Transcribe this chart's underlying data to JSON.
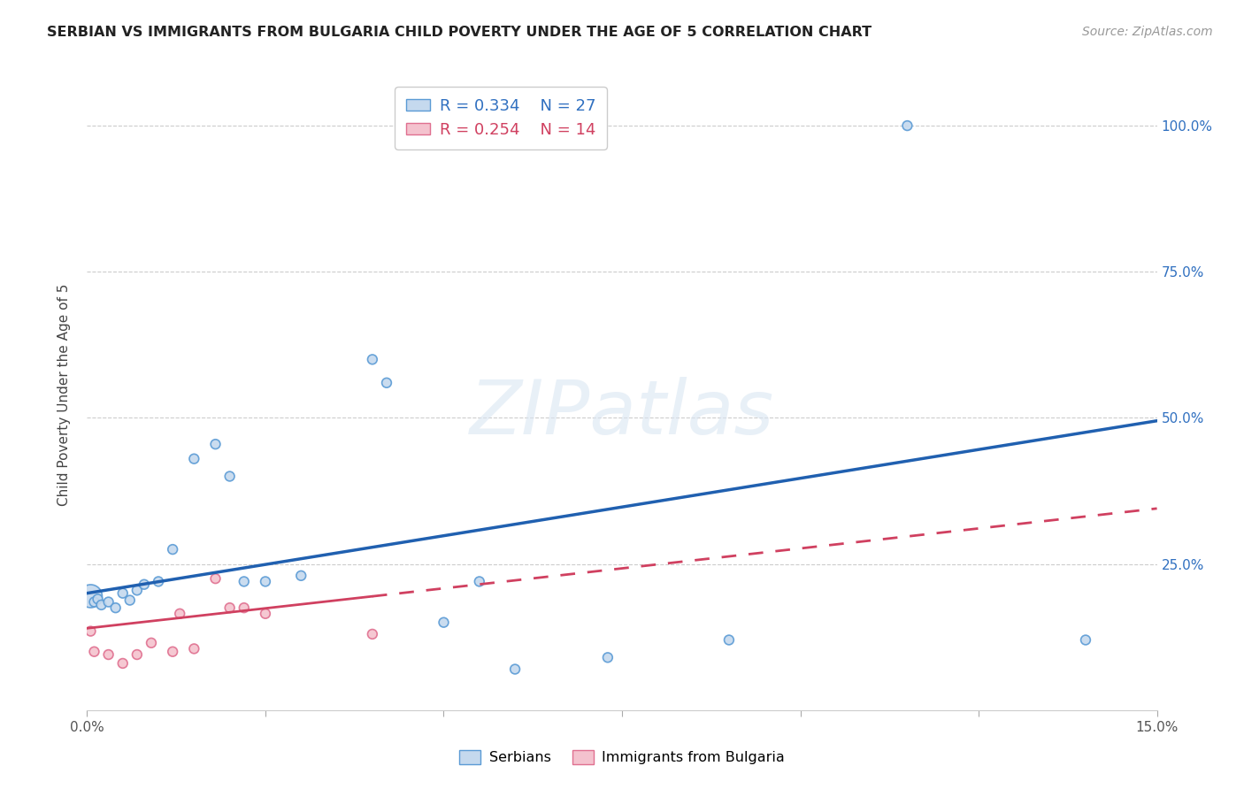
{
  "title": "SERBIAN VS IMMIGRANTS FROM BULGARIA CHILD POVERTY UNDER THE AGE OF 5 CORRELATION CHART",
  "source": "Source: ZipAtlas.com",
  "ylabel_label": "Child Poverty Under the Age of 5",
  "xlim": [
    0.0,
    0.15
  ],
  "ylim": [
    0.0,
    1.08
  ],
  "xtick_positions": [
    0.0,
    0.025,
    0.05,
    0.075,
    0.1,
    0.125,
    0.15
  ],
  "xtick_labels": [
    "0.0%",
    "",
    "",
    "",
    "",
    "",
    "15.0%"
  ],
  "ytick_positions": [
    0.25,
    0.5,
    0.75,
    1.0
  ],
  "ytick_labels_right": [
    "25.0%",
    "50.0%",
    "75.0%",
    "100.0%"
  ],
  "serbian_fill": "#c5d9ee",
  "serbian_edge": "#5b9bd5",
  "bulgarian_fill": "#f4c2ce",
  "bulgarian_edge": "#e07090",
  "trend_serbian": "#2060b0",
  "trend_bulgarian": "#d04060",
  "legend_r_serbian": "R = 0.334",
  "legend_n_serbian": "N = 27",
  "legend_r_bulgarian": "R = 0.254",
  "legend_n_bulgarian": "N = 14",
  "watermark": "ZIPatlas",
  "serbians_x": [
    0.0005,
    0.001,
    0.0015,
    0.002,
    0.003,
    0.004,
    0.005,
    0.006,
    0.007,
    0.008,
    0.01,
    0.012,
    0.015,
    0.018,
    0.02,
    0.022,
    0.025,
    0.03,
    0.04,
    0.042,
    0.05,
    0.055,
    0.06,
    0.073,
    0.09,
    0.115,
    0.14
  ],
  "serbians_y": [
    0.195,
    0.185,
    0.19,
    0.18,
    0.185,
    0.175,
    0.2,
    0.188,
    0.205,
    0.215,
    0.22,
    0.275,
    0.43,
    0.455,
    0.4,
    0.22,
    0.22,
    0.23,
    0.6,
    0.56,
    0.15,
    0.22,
    0.07,
    0.09,
    0.12,
    1.0,
    0.12
  ],
  "serbians_size": [
    350,
    60,
    60,
    60,
    60,
    60,
    60,
    60,
    60,
    60,
    60,
    60,
    60,
    60,
    60,
    60,
    60,
    60,
    60,
    60,
    60,
    60,
    60,
    60,
    60,
    60,
    60
  ],
  "bulgarians_x": [
    0.0005,
    0.001,
    0.003,
    0.005,
    0.007,
    0.009,
    0.012,
    0.013,
    0.015,
    0.018,
    0.02,
    0.022,
    0.025,
    0.04
  ],
  "bulgarians_y": [
    0.135,
    0.1,
    0.095,
    0.08,
    0.095,
    0.115,
    0.1,
    0.165,
    0.105,
    0.225,
    0.175,
    0.175,
    0.165,
    0.13
  ],
  "bulgarians_size": [
    60,
    60,
    60,
    60,
    60,
    60,
    60,
    60,
    60,
    60,
    60,
    60,
    60,
    60
  ],
  "trend_serbian_x0": 0.0,
  "trend_serbian_y0": 0.2,
  "trend_serbian_x1": 0.15,
  "trend_serbian_y1": 0.495,
  "trend_bulgarian_x0": 0.0,
  "trend_bulgarian_y0": 0.14,
  "trend_bulgarian_x1": 0.15,
  "trend_bulgarian_y1": 0.345
}
